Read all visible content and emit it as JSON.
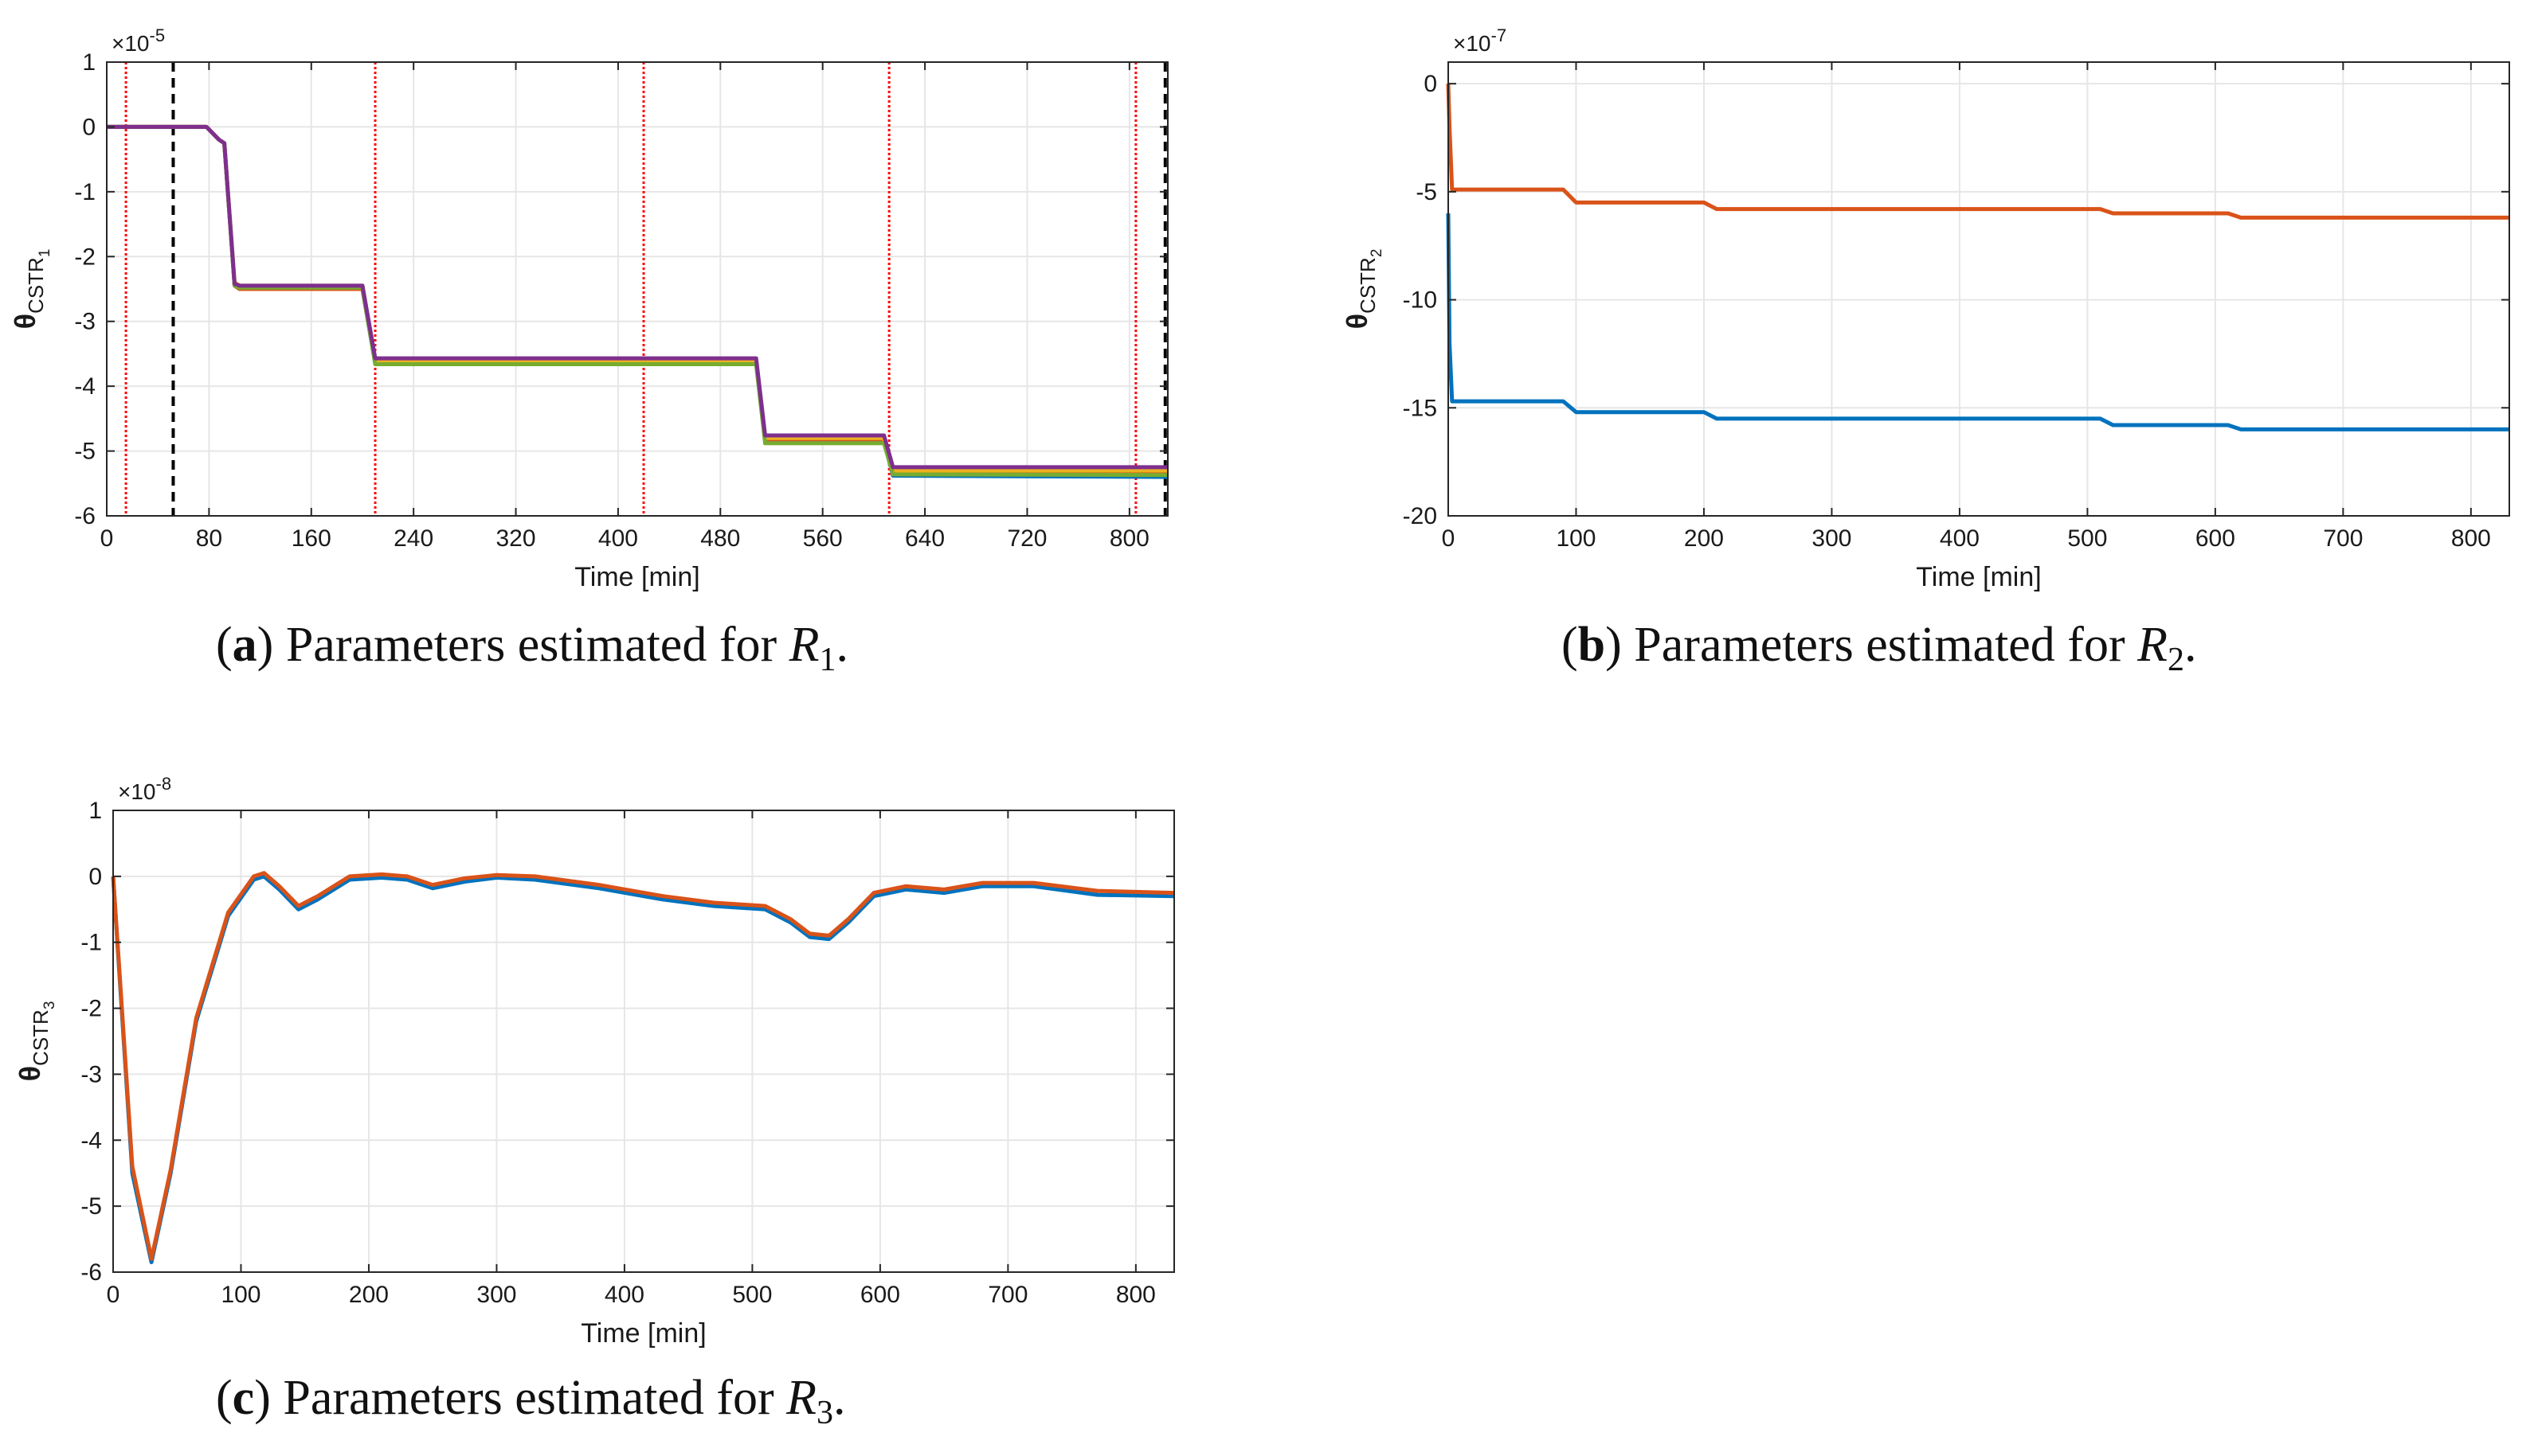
{
  "chart_data": [
    {
      "id": "a",
      "type": "line",
      "caption": {
        "letter": "a",
        "open": "(",
        "close": ")",
        "text": "Parameters estimated for ",
        "var": "R",
        "sub": "1",
        "end": "."
      },
      "xlabel": "Time [min]",
      "ylabel": {
        "main": "θ",
        "sub": "CSTR",
        "subsub": "1"
      },
      "exponent": {
        "base": "×10",
        "power": "-5"
      },
      "xlim": [
        0,
        830
      ],
      "ylim": [
        -6,
        1
      ],
      "xticks": [
        0,
        80,
        160,
        240,
        320,
        400,
        480,
        560,
        640,
        720,
        800
      ],
      "yticks": [
        1,
        0,
        -1,
        -2,
        -3,
        -4,
        -5,
        -6
      ],
      "grid": true,
      "red_vlines": [
        15,
        210,
        420,
        612,
        805
      ],
      "black_vlines": [
        52,
        828
      ],
      "series": [
        {
          "name": "s1",
          "color": "#0072BD",
          "x": [
            0,
            78,
            88,
            92,
            100,
            104,
            200,
            210,
            508,
            515,
            520,
            608,
            615,
            830
          ],
          "y": [
            0,
            0,
            -0.2,
            -0.25,
            -2.45,
            -2.5,
            -2.5,
            -3.65,
            -3.65,
            -4.85,
            -4.85,
            -4.85,
            -5.38,
            -5.4
          ]
        },
        {
          "name": "s2",
          "color": "#D95319",
          "x": [
            0,
            78,
            88,
            92,
            100,
            104,
            200,
            210,
            508,
            515,
            520,
            608,
            615,
            830
          ],
          "y": [
            0,
            0,
            -0.2,
            -0.25,
            -2.45,
            -2.5,
            -2.5,
            -3.62,
            -3.62,
            -4.82,
            -4.82,
            -4.82,
            -5.33,
            -5.35
          ]
        },
        {
          "name": "s3",
          "color": "#EDB120",
          "x": [
            0,
            78,
            88,
            92,
            100,
            104,
            200,
            210,
            508,
            515,
            520,
            608,
            615,
            830
          ],
          "y": [
            0,
            0,
            -0.2,
            -0.25,
            -2.4,
            -2.45,
            -2.45,
            -3.6,
            -3.6,
            -4.8,
            -4.8,
            -4.8,
            -5.3,
            -5.3
          ]
        },
        {
          "name": "s4",
          "color": "#77AC30",
          "x": [
            0,
            78,
            88,
            92,
            100,
            104,
            200,
            210,
            508,
            515,
            520,
            608,
            615,
            830
          ],
          "y": [
            0,
            0,
            -0.2,
            -0.25,
            -2.45,
            -2.48,
            -2.48,
            -3.66,
            -3.66,
            -4.88,
            -4.88,
            -4.88,
            -5.36,
            -5.37
          ]
        },
        {
          "name": "s5",
          "color": "#7E2F8E",
          "x": [
            0,
            78,
            88,
            92,
            100,
            104,
            200,
            210,
            508,
            515,
            520,
            608,
            615,
            830
          ],
          "y": [
            0,
            0,
            -0.2,
            -0.25,
            -2.42,
            -2.45,
            -2.45,
            -3.57,
            -3.57,
            -4.76,
            -4.76,
            -4.76,
            -5.25,
            -5.25
          ]
        }
      ]
    },
    {
      "id": "b",
      "type": "line",
      "caption": {
        "letter": "b",
        "open": "(",
        "close": ")",
        "text": "Parameters estimated for ",
        "var": "R",
        "sub": "2",
        "end": "."
      },
      "xlabel": "Time [min]",
      "ylabel": {
        "main": "θ",
        "sub": "CSTR",
        "subsub": "2"
      },
      "exponent": {
        "base": "×10",
        "power": "-7"
      },
      "xlim": [
        0,
        830
      ],
      "ylim": [
        -20,
        1
      ],
      "xticks": [
        0,
        100,
        200,
        300,
        400,
        500,
        600,
        700,
        800
      ],
      "yticks": [
        0,
        -5,
        -10,
        -15,
        -20
      ],
      "grid": true,
      "series": [
        {
          "name": "blue",
          "color": "#0072BD",
          "x": [
            0,
            1,
            3,
            90,
            100,
            200,
            210,
            510,
            520,
            610,
            620,
            830
          ],
          "y": [
            -6,
            -12,
            -14.7,
            -14.7,
            -15.2,
            -15.2,
            -15.5,
            -15.5,
            -15.8,
            -15.8,
            -16,
            -16
          ]
        },
        {
          "name": "orange",
          "color": "#D95319",
          "x": [
            0,
            1,
            3,
            90,
            100,
            200,
            210,
            510,
            520,
            610,
            620,
            830
          ],
          "y": [
            0,
            -2,
            -4.9,
            -4.9,
            -5.5,
            -5.5,
            -5.8,
            -5.8,
            -6.0,
            -6.0,
            -6.2,
            -6.2
          ]
        }
      ]
    },
    {
      "id": "c",
      "type": "line",
      "caption": {
        "letter": "c",
        "open": "(",
        "close": ")",
        "text": "Parameters estimated for ",
        "var": "R",
        "sub": "3",
        "end": "."
      },
      "xlabel": "Time [min]",
      "ylabel": {
        "main": "θ",
        "sub": "CSTR",
        "subsub": "3"
      },
      "exponent": {
        "base": "×10",
        "power": "-8"
      },
      "xlim": [
        0,
        830
      ],
      "ylim": [
        -6,
        1
      ],
      "xticks": [
        0,
        100,
        200,
        300,
        400,
        500,
        600,
        700,
        800
      ],
      "yticks": [
        1,
        0,
        -1,
        -2,
        -3,
        -4,
        -5,
        -6
      ],
      "grid": true,
      "series": [
        {
          "name": "blue",
          "color": "#0072BD",
          "x": [
            0,
            5,
            15,
            30,
            45,
            65,
            90,
            110,
            118,
            130,
            145,
            160,
            185,
            210,
            230,
            250,
            275,
            300,
            330,
            380,
            430,
            470,
            510,
            530,
            545,
            560,
            575,
            595,
            620,
            650,
            680,
            720,
            770,
            830
          ],
          "y": [
            0,
            -1.5,
            -4.5,
            -5.85,
            -4.5,
            -2.2,
            -0.6,
            -0.05,
            0,
            -0.2,
            -0.5,
            -0.35,
            -0.05,
            -0.02,
            -0.05,
            -0.18,
            -0.08,
            -0.02,
            -0.05,
            -0.18,
            -0.35,
            -0.45,
            -0.5,
            -0.7,
            -0.92,
            -0.95,
            -0.7,
            -0.3,
            -0.2,
            -0.25,
            -0.15,
            -0.15,
            -0.28,
            -0.3
          ]
        },
        {
          "name": "orange",
          "color": "#D95319",
          "x": [
            0,
            5,
            15,
            30,
            45,
            65,
            90,
            110,
            118,
            130,
            145,
            160,
            185,
            210,
            230,
            250,
            275,
            300,
            330,
            380,
            430,
            470,
            510,
            530,
            545,
            560,
            575,
            595,
            620,
            650,
            680,
            720,
            770,
            830
          ],
          "y": [
            0,
            -1.45,
            -4.4,
            -5.8,
            -4.45,
            -2.15,
            -0.55,
            0,
            0.05,
            -0.15,
            -0.45,
            -0.3,
            0,
            0.03,
            0,
            -0.13,
            -0.03,
            0.02,
            0,
            -0.13,
            -0.3,
            -0.4,
            -0.45,
            -0.65,
            -0.87,
            -0.9,
            -0.65,
            -0.25,
            -0.15,
            -0.2,
            -0.1,
            -0.1,
            -0.22,
            -0.25
          ]
        }
      ]
    }
  ]
}
